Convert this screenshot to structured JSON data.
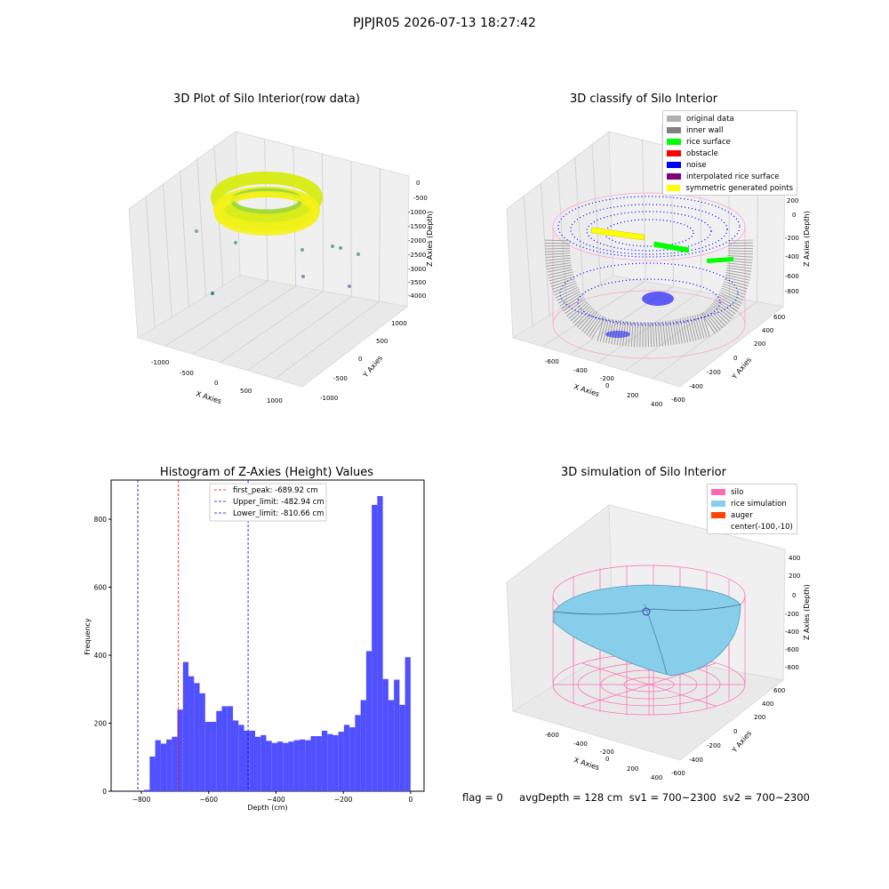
{
  "figure": {
    "suptitle": "PJPJR05 2026-07-13 18:27:42",
    "status": {
      "flag": "flag = 0",
      "avg_depth": "avgDepth = 128 cm",
      "sv1": "sv1 = 700~2300",
      "sv2": "sv2 = 700~2300"
    },
    "colors": {
      "hist_bar": "#5050ff",
      "first_peak_line": "#ff0000",
      "limit_line": "#0000cc",
      "silo": "#ff69b4",
      "rice_simulation": "#87ceeb",
      "auger": "#ff4500",
      "original_data": "#b0b0b0",
      "inner_wall": "#808080",
      "rice_surface": "#00ff00",
      "obstacle": "#ff0000",
      "noise": "#0000ff",
      "interpolated_rice_surface": "#800080",
      "symmetric_generated_points": "#ffff00"
    }
  },
  "chart_data": [
    {
      "type": "scatter3d",
      "title": "3D Plot of Silo Interior(row data)",
      "xlabel": "X Axies",
      "ylabel": "Y Axies",
      "zlabel": "Z Axies (Depth)",
      "x_ticks": [
        "-1000",
        "-500",
        "0",
        "500",
        "1000"
      ],
      "y_ticks": [
        "-1000",
        "-500",
        "0",
        "500",
        "1000"
      ],
      "z_ticks": [
        "0",
        "-500",
        "-1000",
        "-1500",
        "-2000",
        "-2500",
        "-3000",
        "-3500",
        "-4000"
      ]
    },
    {
      "type": "scatter3d",
      "title": "3D classify of Silo Interior",
      "xlabel": "X Axies",
      "ylabel": "Y Axies",
      "zlabel": "Z Axies (Depth)",
      "x_ticks": [
        "-600",
        "-400",
        "-200",
        "0",
        "200",
        "400"
      ],
      "y_ticks": [
        "-600",
        "-400",
        "-200",
        "0",
        "200",
        "400",
        "600"
      ],
      "z_ticks": [
        "200",
        "0",
        "-200",
        "-400",
        "-600",
        "-800"
      ],
      "legend": [
        "original data",
        "inner wall",
        "rice surface",
        "obstacle",
        "noise",
        "interpolated rice surface",
        "symmetric generated points"
      ]
    },
    {
      "type": "bar",
      "title": "Histogram of Z-Axies (Height) Values",
      "xlabel": "Depth (cm)",
      "ylabel": "Frequency",
      "xlim": [
        -890,
        40
      ],
      "ylim": [
        0,
        915
      ],
      "x_ticks": [
        -800,
        -600,
        -400,
        -200,
        0
      ],
      "y_ticks": [
        0,
        200,
        400,
        600,
        800
      ],
      "bin_width": 16.5,
      "bin_start": -858,
      "values": [
        2,
        0,
        0,
        0,
        4,
        102,
        150,
        140,
        152,
        160,
        240,
        380,
        338,
        318,
        288,
        204,
        204,
        236,
        250,
        250,
        208,
        195,
        178,
        178,
        160,
        165,
        148,
        142,
        146,
        142,
        146,
        150,
        152,
        150,
        162,
        162,
        178,
        168,
        165,
        175,
        195,
        188,
        224,
        268,
        412,
        842,
        868,
        330,
        268,
        328,
        254,
        394
      ],
      "lines": [
        {
          "label": "first_peak: -689.92 cm",
          "value": -689.92,
          "color": "#ff0000"
        },
        {
          "label": "Upper_limit: -482.94 cm",
          "value": -482.94,
          "color": "#0000cc"
        },
        {
          "label": "Lower_limit: -810.66 cm",
          "value": -810.66,
          "color": "#0000cc"
        }
      ]
    },
    {
      "type": "surface3d",
      "title": "3D simulation of Silo Interior",
      "xlabel": "X Axies",
      "ylabel": "Y Axies",
      "zlabel": "Z Axies (Depth)",
      "x_ticks": [
        "-600",
        "-400",
        "-200",
        "0",
        "200",
        "400"
      ],
      "y_ticks": [
        "-600",
        "-400",
        "-200",
        "0",
        "200",
        "400",
        "600"
      ],
      "z_ticks": [
        "400",
        "200",
        "0",
        "-200",
        "-400",
        "-600",
        "-800"
      ],
      "legend": [
        "silo",
        "rice simulation",
        "auger",
        "center(-100,-10)"
      ]
    }
  ]
}
